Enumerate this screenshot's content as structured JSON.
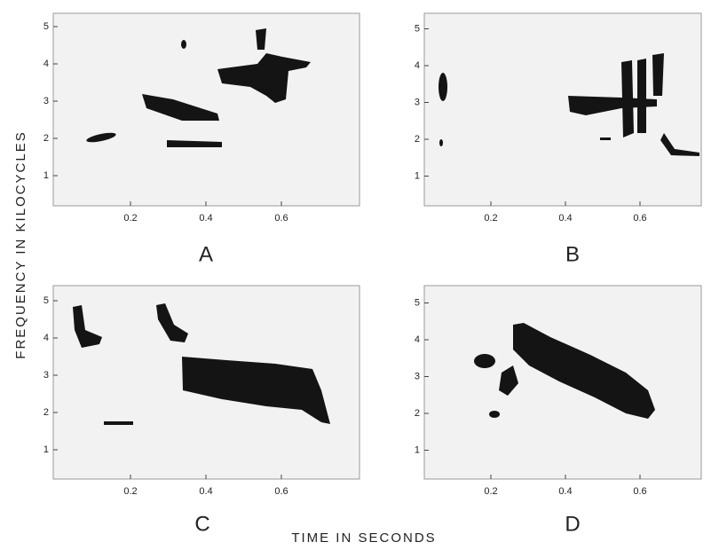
{
  "figure": {
    "y_axis_label": "FREQUENCY IN KILOCYCLES",
    "x_axis_label": "TIME IN SECONDS",
    "panels": [
      {
        "label": "A",
        "yticks": [
          1,
          2,
          3,
          4,
          5
        ],
        "xticks": [
          0.2,
          0.4,
          0.6
        ]
      },
      {
        "label": "B",
        "yticks": [
          1,
          2,
          3,
          4,
          5
        ],
        "xticks": [
          0.2,
          0.4,
          0.6
        ]
      },
      {
        "label": "C",
        "yticks": [
          1,
          2,
          3,
          4,
          5
        ],
        "xticks": [
          0.2,
          0.4,
          0.6
        ]
      },
      {
        "label": "D",
        "yticks": [
          1,
          2,
          3,
          4,
          5
        ],
        "xticks": [
          0.2,
          0.4,
          0.6
        ]
      }
    ]
  }
}
